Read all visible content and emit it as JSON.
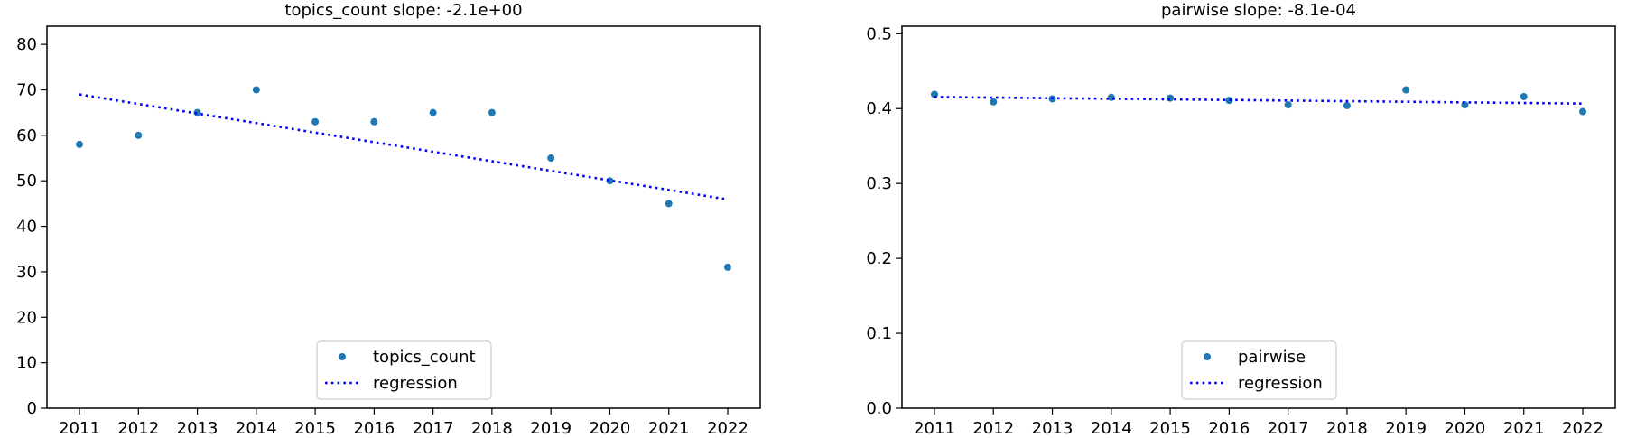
{
  "chart_data": [
    {
      "type": "scatter",
      "title": "topics_count slope: -2.1e+00",
      "xlabel": "",
      "ylabel": "",
      "x": [
        "2011",
        "2012",
        "2013",
        "2014",
        "2015",
        "2016",
        "2017",
        "2018",
        "2019",
        "2020",
        "2021",
        "2022"
      ],
      "series": [
        {
          "name": "topics_count",
          "kind": "points",
          "color": "#1f77b4",
          "values": [
            58,
            60,
            65,
            70,
            63,
            63,
            65,
            65,
            55,
            50,
            45,
            31
          ]
        },
        {
          "name": "regression",
          "kind": "dotted-line",
          "color": "#0000ff",
          "values": [
            69.0,
            66.9,
            64.8,
            62.7,
            60.6,
            58.5,
            56.4,
            54.3,
            52.2,
            50.1,
            48.0,
            45.9
          ]
        }
      ],
      "ylim": [
        0,
        84
      ],
      "yticks": [
        0,
        10,
        20,
        30,
        40,
        50,
        60,
        70,
        80
      ],
      "grid": false,
      "legend": "lower center"
    },
    {
      "type": "scatter",
      "title": "pairwise slope: -8.1e-04",
      "xlabel": "",
      "ylabel": "",
      "x": [
        "2011",
        "2012",
        "2013",
        "2014",
        "2015",
        "2016",
        "2017",
        "2018",
        "2019",
        "2020",
        "2021",
        "2022"
      ],
      "series": [
        {
          "name": "pairwise",
          "kind": "points",
          "color": "#1f77b4",
          "values": [
            0.419,
            0.409,
            0.413,
            0.415,
            0.414,
            0.411,
            0.405,
            0.404,
            0.425,
            0.405,
            0.416,
            0.396
          ]
        },
        {
          "name": "regression",
          "kind": "dotted-line",
          "color": "#0000ff",
          "values": [
            0.4155,
            0.4147,
            0.4139,
            0.4131,
            0.4123,
            0.4115,
            0.4107,
            0.4099,
            0.4091,
            0.4083,
            0.4075,
            0.4067
          ]
        }
      ],
      "ylim": [
        0,
        0.51
      ],
      "yticks": [
        0.0,
        0.1,
        0.2,
        0.3,
        0.4,
        0.5
      ],
      "ytick_labels": [
        "0.0",
        "0.1",
        "0.2",
        "0.3",
        "0.4",
        "0.5"
      ],
      "grid": false,
      "legend": "lower center"
    }
  ]
}
